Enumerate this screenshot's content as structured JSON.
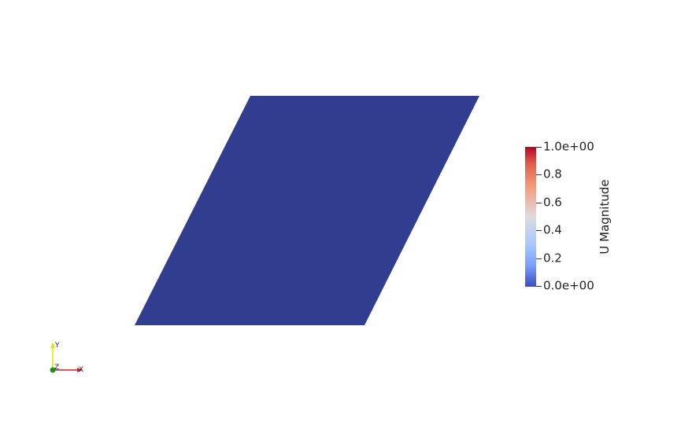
{
  "surface": {
    "fill_color": "#313d8f"
  },
  "colorbar": {
    "title": "U Magnitude",
    "labels": [
      "1.0e+00",
      "0.8",
      "0.6",
      "0.4",
      "0.2",
      "0.0e+00"
    ],
    "range": [
      0,
      1
    ],
    "colormap": "Cool to Warm",
    "colors": {
      "high": "#b40426",
      "mid": "#dddcdc",
      "low": "#3b4cc0"
    }
  },
  "orientation_axes": {
    "x_label": "X",
    "y_label": "Y",
    "z_label": "Z",
    "colors": {
      "x": "#d42020",
      "y": "#e6e600",
      "z": "#1a8f1a"
    }
  }
}
